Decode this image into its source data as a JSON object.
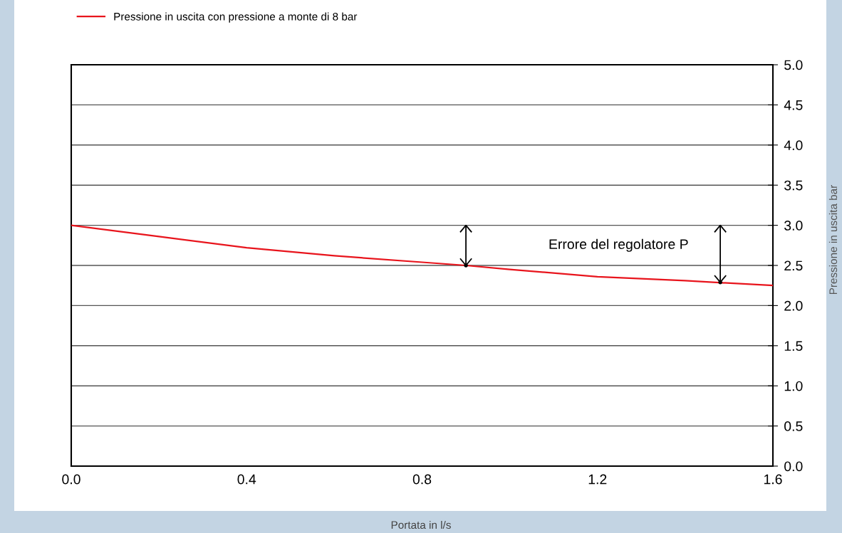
{
  "chart_data": {
    "type": "line",
    "xlabel": "Portata in l/s",
    "ylabel": "Pressione in uscita bar",
    "x": [
      0,
      0.2,
      0.4,
      0.6,
      0.8,
      0.9,
      1.0,
      1.2,
      1.4,
      1.6
    ],
    "series": [
      {
        "name": "Pressione in uscita con pressione a monte di 8 bar",
        "color": "#e8141c",
        "values": [
          3.0,
          2.86,
          2.72,
          2.62,
          2.54,
          2.5,
          2.45,
          2.36,
          2.31,
          2.25
        ]
      },
      {
        "type": "scatter",
        "x": [
          0.9,
          1.48
        ],
        "values": [
          2.5,
          2.29
        ],
        "errors": [
          [
            2.5,
            3.0
          ],
          [
            2.29,
            3.0
          ]
        ],
        "color": "#000000",
        "marker": "circle"
      }
    ],
    "annotations": [
      "Errore del regolatore P"
    ],
    "xlim": [
      0,
      1.6
    ],
    "xticks": [
      {
        "value": 0,
        "label": "0.0"
      },
      0.4,
      0.8,
      1.2,
      1.6
    ],
    "ylim": [
      0,
      5
    ],
    "yticks": [
      {
        "value": 0,
        "label": "0.0"
      },
      0.5,
      {
        "value": 1,
        "label": "1.0"
      },
      1.5,
      {
        "value": 2,
        "label": "2.0"
      },
      2.5,
      {
        "value": 3,
        "label": "3.0"
      },
      3.5,
      {
        "value": 4,
        "label": "4.0"
      },
      4.5,
      {
        "value": 5,
        "label": "5.0"
      }
    ],
    "grid": "y",
    "legend": "top left",
    "marker": "none",
    "line_style": "solid"
  }
}
